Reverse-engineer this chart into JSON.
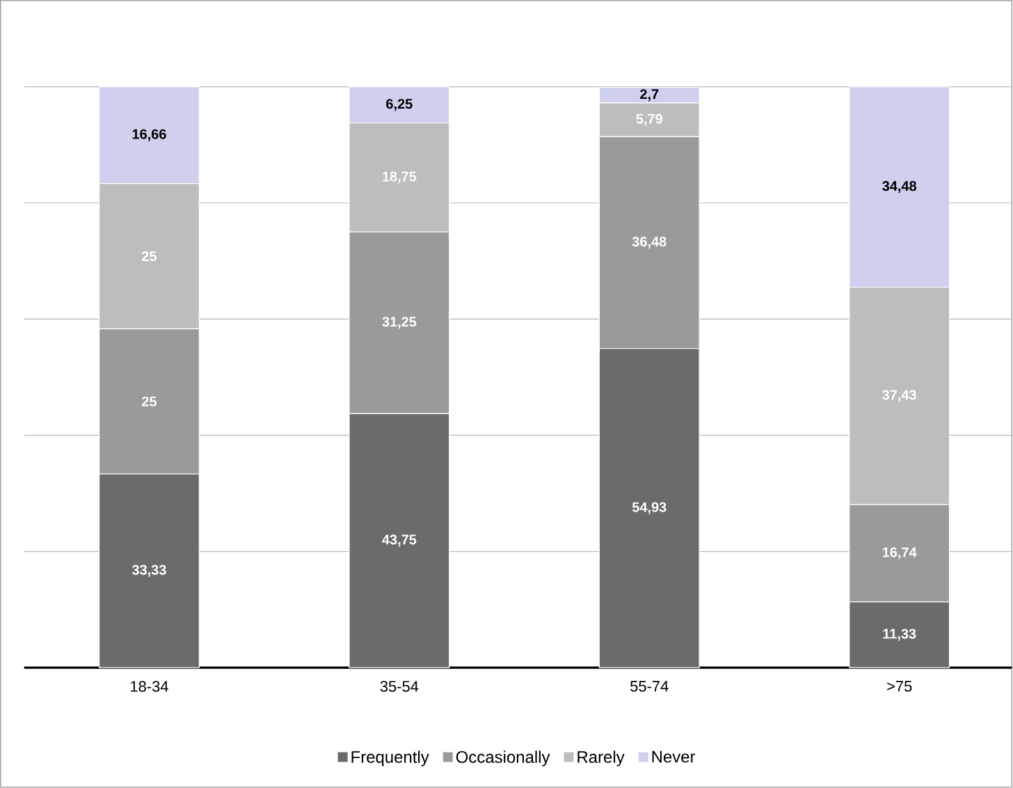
{
  "chart_data": {
    "type": "bar",
    "stacked": true,
    "categories": [
      "18-34",
      "35-54",
      "55-74",
      ">75"
    ],
    "series": [
      {
        "name": "Frequently",
        "color": "#6b6b6b",
        "values": [
          33.33,
          43.75,
          54.93,
          11.33
        ],
        "value_labels": [
          "33,33",
          "43,75",
          "54,93",
          "11,33"
        ]
      },
      {
        "name": "Occasionally",
        "color": "#9a9a9a",
        "values": [
          25,
          31.25,
          36.48,
          16.74
        ],
        "value_labels": [
          "25",
          "31,25",
          "36,48",
          "16,74"
        ]
      },
      {
        "name": "Rarely",
        "color": "#bdbdbd",
        "values": [
          25,
          18.75,
          5.79,
          37.43
        ],
        "value_labels": [
          "25",
          "18,75",
          "5,79",
          "37,43"
        ]
      },
      {
        "name": "Never",
        "color": "#cfcfee",
        "values": [
          16.66,
          6.25,
          2.7,
          34.48
        ],
        "value_labels": [
          "16,66",
          "6,25",
          "2,7",
          "34,48"
        ]
      }
    ],
    "ylim": [
      0,
      100
    ],
    "yticks": [
      {
        "value": 0,
        "label": null
      },
      {
        "value": 20,
        "label": null
      },
      {
        "value": 40,
        "label": null
      },
      {
        "value": 60,
        "label": null
      },
      {
        "value": 80,
        "label": null
      },
      {
        "value": 100,
        "label": null
      }
    ],
    "tick_labels": "x",
    "grid": "y",
    "legend": "bottom"
  }
}
